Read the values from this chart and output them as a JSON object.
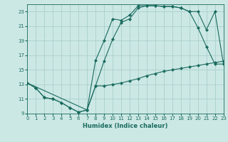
{
  "title": "",
  "xlabel": "Humidex (Indice chaleur)",
  "xlim": [
    0,
    23
  ],
  "ylim": [
    9,
    24
  ],
  "bg_color": "#cce8e5",
  "grid_color": "#aad0cc",
  "line_color": "#1a6b5e",
  "yticks": [
    9,
    11,
    13,
    15,
    17,
    19,
    21,
    23
  ],
  "xticks": [
    0,
    1,
    2,
    3,
    4,
    5,
    6,
    7,
    8,
    9,
    10,
    11,
    12,
    13,
    14,
    15,
    16,
    17,
    18,
    19,
    20,
    21,
    22,
    23
  ],
  "line1_x": [
    0,
    1,
    2,
    3,
    4,
    5,
    6,
    7,
    8,
    9,
    10,
    11,
    12,
    13,
    14,
    15,
    16,
    17,
    18,
    19,
    20,
    21,
    22,
    23
  ],
  "line1_y": [
    13.2,
    12.5,
    11.2,
    11.0,
    10.5,
    9.8,
    9.2,
    9.5,
    12.8,
    16.2,
    19.2,
    21.5,
    22.0,
    23.5,
    23.8,
    23.8,
    23.7,
    23.7,
    23.5,
    23.0,
    20.8,
    18.2,
    15.8,
    15.8
  ],
  "line2_x": [
    0,
    1,
    2,
    3,
    4,
    5,
    6,
    7,
    8,
    9,
    10,
    11,
    12,
    13,
    14,
    15,
    16,
    17,
    18,
    19,
    20,
    21,
    22,
    23
  ],
  "line2_y": [
    13.2,
    12.5,
    11.2,
    11.0,
    10.5,
    9.8,
    9.2,
    9.5,
    12.8,
    12.8,
    13.0,
    13.2,
    13.5,
    13.8,
    14.2,
    14.5,
    14.8,
    15.0,
    15.2,
    15.4,
    15.6,
    15.8,
    16.0,
    16.2
  ],
  "line3_x": [
    0,
    7,
    8,
    9,
    10,
    11,
    12,
    13,
    14,
    15,
    16,
    17,
    18,
    19,
    20,
    21,
    22,
    23
  ],
  "line3_y": [
    13.2,
    9.5,
    16.3,
    19.0,
    22.0,
    21.8,
    22.5,
    23.8,
    23.8,
    23.8,
    23.7,
    23.7,
    23.5,
    23.0,
    23.0,
    20.5,
    23.0,
    15.8
  ]
}
